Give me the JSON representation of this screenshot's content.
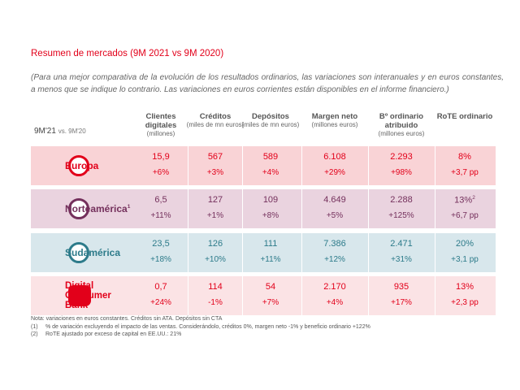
{
  "header": {
    "title": "Resumen de mercados (9M 2021 vs 9M 2020)",
    "subtitle": "(Para una mejor comparativa de la evolución de los resultados ordinarios, las variaciones son interanuales y en euros constantes, a menos que se indique lo contrario. Las variaciones en euros corrientes están disponibles en el informe financiero.)"
  },
  "table": {
    "period": "9M'21",
    "period_vs": "vs. 9M'20",
    "columns": [
      {
        "title": "Clientes digitales",
        "unit": "(millones)"
      },
      {
        "title": "Créditos",
        "unit": "(miles de mn euros)"
      },
      {
        "title": "Depósitos",
        "unit": "(miles de mn euros)"
      },
      {
        "title": "Margen neto",
        "unit": "(millones euros)"
      },
      {
        "title": "Bº ordinario atribuido",
        "unit": "(millones euros)"
      },
      {
        "title": "RoTE ordinario"
      }
    ],
    "rows": [
      {
        "name": "Europa",
        "values": [
          "15,9",
          "567",
          "589",
          "6.108",
          "2.293",
          "8%"
        ],
        "changes": [
          "+6%",
          "+3%",
          "+4%",
          "+29%",
          "+98%",
          "+3,7 pp"
        ]
      },
      {
        "name": "Norteamérica",
        "name_sup": "1",
        "values": [
          "6,5",
          "127",
          "109",
          "4.649",
          "2.288",
          "13%"
        ],
        "value_sup": {
          "5": "2"
        },
        "changes": [
          "+11%",
          "+1%",
          "+8%",
          "+5%",
          "+125%",
          "+6,7 pp"
        ]
      },
      {
        "name": "Sudamérica",
        "values": [
          "23,5",
          "126",
          "111",
          "7.386",
          "2.471",
          "20%"
        ],
        "changes": [
          "+18%",
          "+10%",
          "+11%",
          "+12%",
          "+31%",
          "+3,1 pp"
        ]
      },
      {
        "name": "Digital Consumer Bank",
        "values": [
          "0,7",
          "114",
          "54",
          "2.170",
          "935",
          "13%"
        ],
        "changes": [
          "+24%",
          "-1%",
          "+7%",
          "+4%",
          "+17%",
          "+2,3 pp"
        ]
      }
    ]
  },
  "notes": {
    "main": "Nota: variaciones en euros constantes. Créditos sin ATA. Depósitos sin CTA",
    "items": [
      {
        "marker": "(1)",
        "text": "% de variación excluyendo el impacto de las ventas. Considerándolo, créditos 0%, margen neto -1% y beneficio ordinario +122%"
      },
      {
        "marker": "(2)",
        "text": "RoTE ajustado por exceso de capital en EE.UU.: 21%"
      }
    ]
  }
}
